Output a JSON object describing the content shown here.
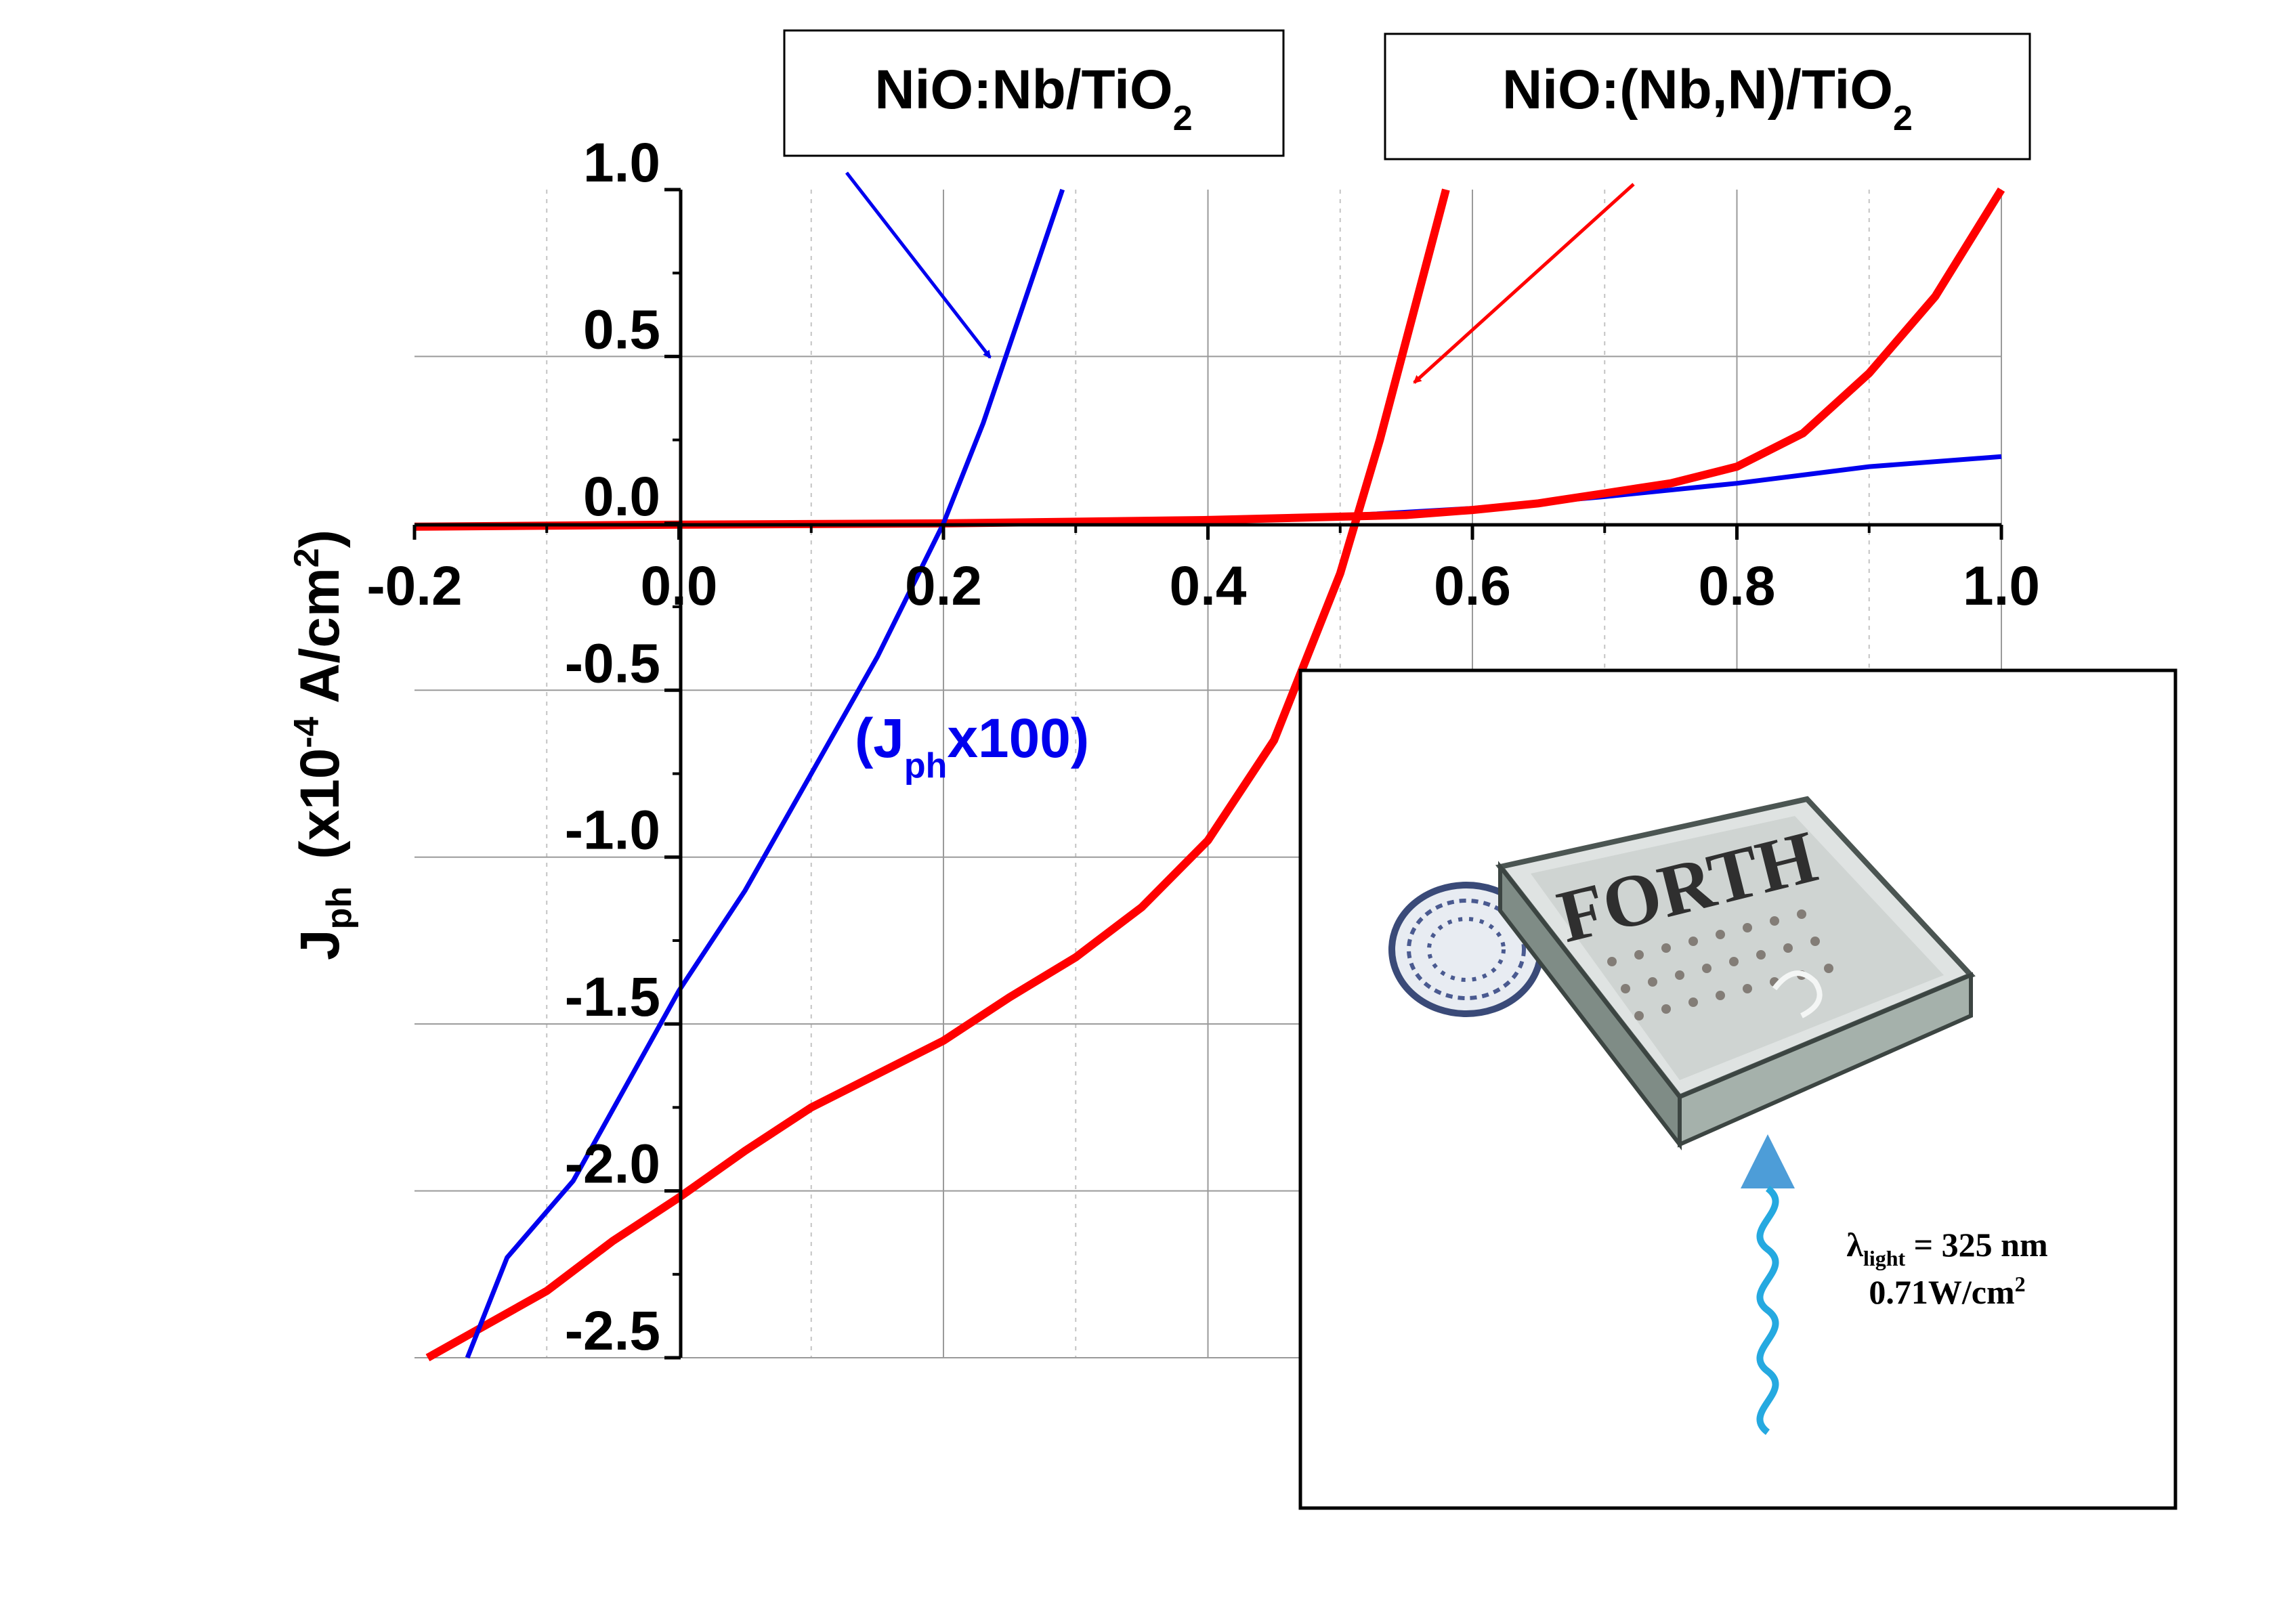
{
  "chart_data": {
    "type": "line",
    "xlabel": "",
    "ylabel": {
      "main": "J",
      "sub": "ph",
      "units_prefix": "(x10",
      "units_exp": "-4",
      "units_mid": " A/cm",
      "units_exp2": "2",
      "units_suffix": ")"
    },
    "xlim": [
      -0.2,
      1.0
    ],
    "ylim": [
      -2.5,
      1.0
    ],
    "x_ticks": [
      "-0.2",
      "0.0",
      "0.2",
      "0.4",
      "0.6",
      "0.8",
      "1.0"
    ],
    "y_ticks": [
      "1.0",
      "0.5",
      "0.0",
      "-0.5",
      "-1.0",
      "-1.5",
      "-2.0",
      "-2.5"
    ],
    "grid": true,
    "series": [
      {
        "name": "NiO:Nb/TiO2",
        "color": "#0000ee",
        "scale_note": "(Jphx100)",
        "points": [
          [
            -0.2,
            -0.008
          ],
          [
            0.0,
            -0.005
          ],
          [
            0.2,
            0.0
          ],
          [
            0.3,
            0.005
          ],
          [
            0.4,
            0.012
          ],
          [
            0.5,
            0.022
          ],
          [
            0.6,
            0.045
          ],
          [
            0.7,
            0.08
          ],
          [
            0.8,
            0.12
          ],
          [
            0.9,
            0.17
          ],
          [
            1.0,
            0.2
          ]
        ],
        "scaled_segment": [
          [
            -0.16,
            -2.5
          ],
          [
            -0.13,
            -2.2
          ],
          [
            -0.08,
            -1.97
          ],
          [
            0.0,
            -1.4
          ],
          [
            0.05,
            -1.1
          ],
          [
            0.1,
            -0.75
          ],
          [
            0.15,
            -0.4
          ],
          [
            0.2,
            0.0
          ],
          [
            0.23,
            0.3
          ],
          [
            0.26,
            0.65
          ],
          [
            0.29,
            1.0
          ]
        ]
      },
      {
        "name": "NiO:(Nb,N)/TiO2",
        "color": "#ff0000",
        "points": [
          [
            -0.2,
            -0.01
          ],
          [
            0.0,
            -0.004
          ],
          [
            0.2,
            0.0
          ],
          [
            0.4,
            0.01
          ],
          [
            0.5,
            0.02
          ],
          [
            0.55,
            0.025
          ],
          [
            0.6,
            0.04
          ],
          [
            0.65,
            0.06
          ],
          [
            0.7,
            0.09
          ],
          [
            0.75,
            0.12
          ],
          [
            0.8,
            0.17
          ],
          [
            0.85,
            0.27
          ],
          [
            0.9,
            0.45
          ],
          [
            0.95,
            0.68
          ],
          [
            1.0,
            1.0
          ]
        ],
        "steep_segment": [
          [
            -0.19,
            -2.5
          ],
          [
            -0.1,
            -2.3
          ],
          [
            -0.05,
            -2.15
          ],
          [
            0.0,
            -2.02
          ],
          [
            0.05,
            -1.88
          ],
          [
            0.1,
            -1.75
          ],
          [
            0.15,
            -1.65
          ],
          [
            0.2,
            -1.55
          ],
          [
            0.25,
            -1.42
          ],
          [
            0.3,
            -1.3
          ],
          [
            0.35,
            -1.15
          ],
          [
            0.4,
            -0.95
          ],
          [
            0.45,
            -0.65
          ],
          [
            0.5,
            -0.15
          ],
          [
            0.53,
            0.25
          ],
          [
            0.56,
            0.7
          ],
          [
            0.58,
            1.0
          ]
        ]
      }
    ],
    "legend_labels": [
      {
        "base": "NiO:Nb/TiO",
        "sub": "2"
      },
      {
        "base": "NiO:(Nb,N)/TiO",
        "sub": "2"
      }
    ],
    "scale_annotation": {
      "open": "(J",
      "sub": "ph",
      "close": "x100)"
    }
  },
  "inset": {
    "photo_text": "FORTH",
    "light_lambda": "λ",
    "light_sub": "light",
    "light_value": " = 325 nm",
    "light_power_base": "0.71W/cm",
    "light_power_sup": "2"
  }
}
